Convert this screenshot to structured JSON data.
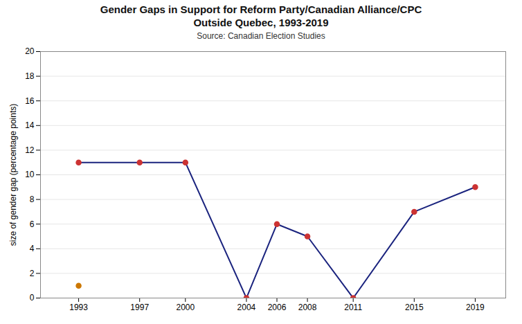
{
  "chart_data": {
    "type": "line",
    "title": [
      "Gender Gaps in Support for Reform Party/Canadian Alliance/CPC",
      "Outside Quebec, 1993-2019"
    ],
    "subtitle": "Source: Canadian Election Studies",
    "y_label": "size of gender gap (percentage points)",
    "x": [
      1993,
      1997,
      2000,
      2004,
      2006,
      2008,
      2011,
      2015,
      2019
    ],
    "xlim": [
      1990.5,
      2021
    ],
    "xticks": [
      1993,
      1997,
      2000,
      2004,
      2006,
      2008,
      2011,
      2015,
      2019
    ],
    "ylim": [
      0,
      20
    ],
    "yticks": [
      0,
      2,
      4,
      6,
      8,
      10,
      12,
      14,
      16,
      18,
      20
    ],
    "grid": true,
    "series": [
      {
        "type": "line",
        "values": [
          11,
          11,
          11,
          0,
          6,
          5,
          0,
          7,
          9
        ],
        "color": "#1a237e",
        "marker": "circle",
        "colors": [
          "#cc3333",
          "#cc3333",
          "#cc3333",
          "#cc3333",
          "#cc3333",
          "#cc3333",
          "#cc3333",
          "#cc3333",
          "#cc3333"
        ]
      },
      {
        "type": "scatter",
        "x": [
          1993
        ],
        "values": [
          1
        ],
        "color": "#cc7700",
        "marker": "circle"
      }
    ]
  }
}
